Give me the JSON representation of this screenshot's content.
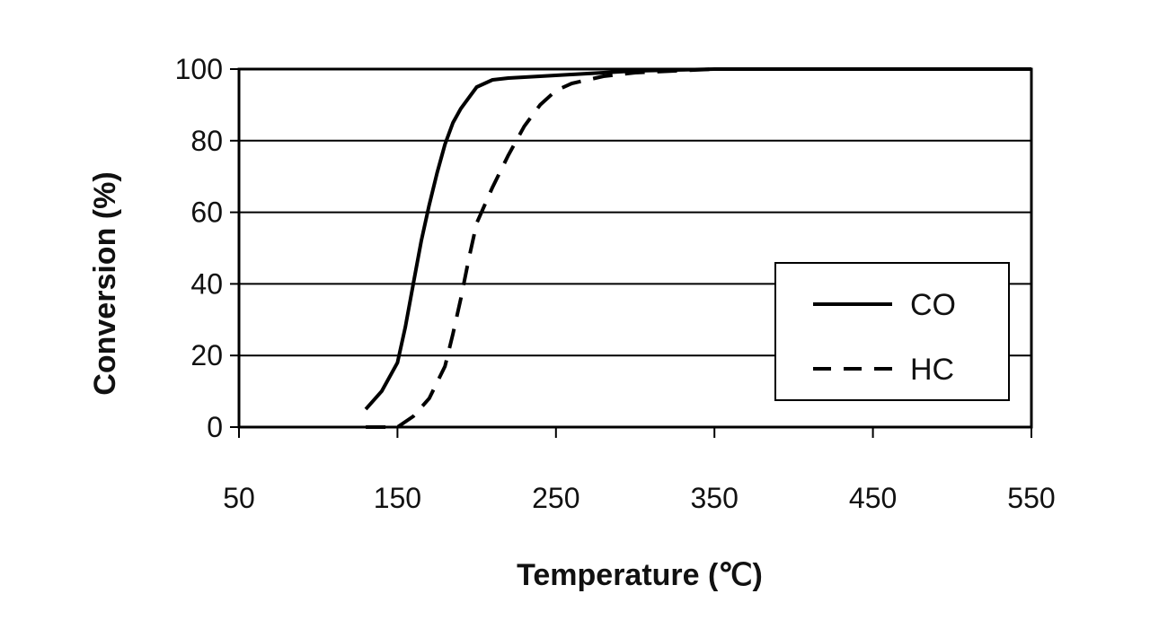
{
  "chart_data": {
    "type": "line",
    "title": "",
    "xlabel": "Temperature (℃)",
    "ylabel": "Conversion (%)",
    "xlim": [
      50,
      550
    ],
    "ylim": [
      0,
      100
    ],
    "x_ticks": [
      "50",
      "150",
      "250",
      "350",
      "450",
      "550"
    ],
    "y_ticks": [
      "0",
      "20",
      "40",
      "60",
      "80",
      "100"
    ],
    "grid": "horizontal",
    "legend_position": "right",
    "series": [
      {
        "name": "CO",
        "style": "solid",
        "color": "#000000",
        "x": [
          130,
          140,
          150,
          155,
          160,
          165,
          170,
          175,
          180,
          185,
          190,
          195,
          200,
          210,
          220,
          240,
          260,
          300,
          350,
          450,
          550
        ],
        "y": [
          5,
          10,
          18,
          28,
          40,
          52,
          62,
          71,
          79,
          85,
          89,
          92,
          95,
          97,
          97.5,
          98,
          98.5,
          99.5,
          100,
          100,
          100
        ]
      },
      {
        "name": "HC",
        "style": "dashed",
        "color": "#000000",
        "x": [
          130,
          140,
          150,
          160,
          170,
          180,
          185,
          190,
          195,
          200,
          210,
          220,
          230,
          240,
          250,
          260,
          280,
          300,
          350,
          450,
          550
        ],
        "y": [
          0,
          0,
          0,
          3,
          8,
          17,
          26,
          36,
          47,
          57,
          67,
          76,
          84,
          90,
          94,
          96,
          98,
          99,
          100,
          100,
          100
        ]
      }
    ]
  }
}
